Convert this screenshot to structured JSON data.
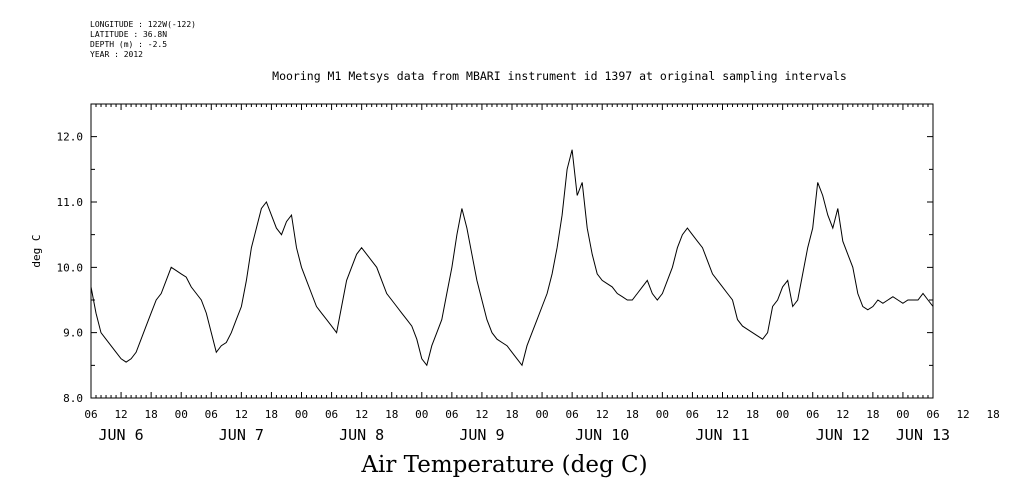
{
  "meta": {
    "longitude": "LONGITUDE : 122W(-122)",
    "latitude": "LATITUDE : 36.8N",
    "depth": "DEPTH (m) : -2.5",
    "year": "YEAR : 2012"
  },
  "chart_data": {
    "type": "line",
    "title": "Mooring M1 Metsys data from MBARI instrument id 1397 at original sampling intervals",
    "xlabel": "Air Temperature (deg C)",
    "ylabel": "deg C",
    "ylim": [
      8.0,
      12.5
    ],
    "y_ticks": [
      "8.0",
      "9.0",
      "10.0",
      "11.0",
      "12.0"
    ],
    "x_hour_ticks": [
      "06",
      "12",
      "18",
      "00",
      "06",
      "12",
      "18",
      "00",
      "06",
      "12",
      "18",
      "00",
      "06",
      "12",
      "18",
      "00",
      "06",
      "12",
      "18",
      "00",
      "06",
      "12",
      "18",
      "00",
      "06",
      "12",
      "18",
      "00",
      "06",
      "12",
      "18",
      "00",
      "06"
    ],
    "x_day_labels": [
      "JUN  6",
      "JUN  7",
      "JUN  8",
      "JUN  9",
      "JUN 10",
      "JUN 11",
      "JUN 12",
      "JUN 13"
    ],
    "x_unit": "hours since 2012-06-06 06:00",
    "xlim": [
      0,
      168
    ],
    "grid": false,
    "series": [
      {
        "x": [
          0,
          1,
          2,
          3,
          4,
          5,
          6,
          7,
          8,
          9,
          10,
          11,
          12,
          13,
          14,
          15,
          16,
          17,
          18,
          19,
          20,
          21,
          22,
          23,
          24,
          25,
          26,
          27,
          28,
          29,
          30,
          31,
          32,
          33,
          34,
          35,
          36,
          37,
          38,
          39,
          40,
          41,
          42,
          43,
          44,
          45,
          46,
          47,
          48,
          49,
          50,
          51,
          52,
          53,
          54,
          55,
          56,
          57,
          58,
          59,
          60,
          61,
          62,
          63,
          64,
          65,
          66,
          67,
          68,
          69,
          70,
          71,
          72,
          73,
          74,
          75,
          76,
          77,
          78,
          79,
          80,
          81,
          82,
          83,
          84,
          85,
          86,
          87,
          88,
          89,
          90,
          91,
          92,
          93,
          94,
          95,
          96,
          97,
          98,
          99,
          100,
          101,
          102,
          103,
          104,
          105,
          106,
          107,
          108,
          109,
          110,
          111,
          112,
          113,
          114,
          115,
          116,
          117,
          118,
          119,
          120,
          121,
          122,
          123,
          124,
          125,
          126,
          127,
          128,
          129,
          130,
          131,
          132,
          133,
          134,
          135,
          136,
          137,
          138,
          139,
          140,
          141,
          142,
          143,
          144,
          145,
          146,
          147,
          148,
          149,
          150,
          151,
          152,
          153,
          154,
          155,
          156,
          157,
          158,
          159,
          160,
          161,
          162,
          163,
          164,
          165,
          166,
          167,
          168
        ],
        "values": [
          9.7,
          9.3,
          9.0,
          8.9,
          8.8,
          8.7,
          8.6,
          8.55,
          8.6,
          8.7,
          8.9,
          9.1,
          9.3,
          9.5,
          9.6,
          9.8,
          10.0,
          9.95,
          9.9,
          9.85,
          9.7,
          9.6,
          9.5,
          9.3,
          9.0,
          8.7,
          8.8,
          8.85,
          9.0,
          9.2,
          9.4,
          9.8,
          10.3,
          10.6,
          10.9,
          11.0,
          10.8,
          10.6,
          10.5,
          10.7,
          10.8,
          10.3,
          10.0,
          9.8,
          9.6,
          9.4,
          9.3,
          9.2,
          9.1,
          9.0,
          9.4,
          9.8,
          10.0,
          10.2,
          10.3,
          10.2,
          10.1,
          10.0,
          9.8,
          9.6,
          9.5,
          9.4,
          9.3,
          9.2,
          9.1,
          8.9,
          8.6,
          8.5,
          8.8,
          9.0,
          9.2,
          9.6,
          10.0,
          10.5,
          10.9,
          10.6,
          10.2,
          9.8,
          9.5,
          9.2,
          9.0,
          8.9,
          8.85,
          8.8,
          8.7,
          8.6,
          8.5,
          8.8,
          9.0,
          9.2,
          9.4,
          9.6,
          9.9,
          10.3,
          10.8,
          11.5,
          11.8,
          11.1,
          11.3,
          10.6,
          10.2,
          9.9,
          9.8,
          9.75,
          9.7,
          9.6,
          9.55,
          9.5,
          9.5,
          9.6,
          9.7,
          9.8,
          9.6,
          9.5,
          9.6,
          9.8,
          10.0,
          10.3,
          10.5,
          10.6,
          10.5,
          10.4,
          10.3,
          10.1,
          9.9,
          9.8,
          9.7,
          9.6,
          9.5,
          9.2,
          9.1,
          9.05,
          9.0,
          8.95,
          8.9,
          9.0,
          9.4,
          9.5,
          9.7,
          9.8,
          9.4,
          9.5,
          9.9,
          10.3,
          10.6,
          11.3,
          11.1,
          10.8,
          10.6,
          10.9,
          10.4,
          10.2,
          10.0,
          9.6,
          9.4,
          9.35,
          9.4,
          9.5,
          9.45,
          9.5,
          9.55,
          9.5,
          9.45,
          9.5,
          9.5,
          9.5,
          9.6,
          9.5,
          9.4
        ]
      }
    ]
  }
}
